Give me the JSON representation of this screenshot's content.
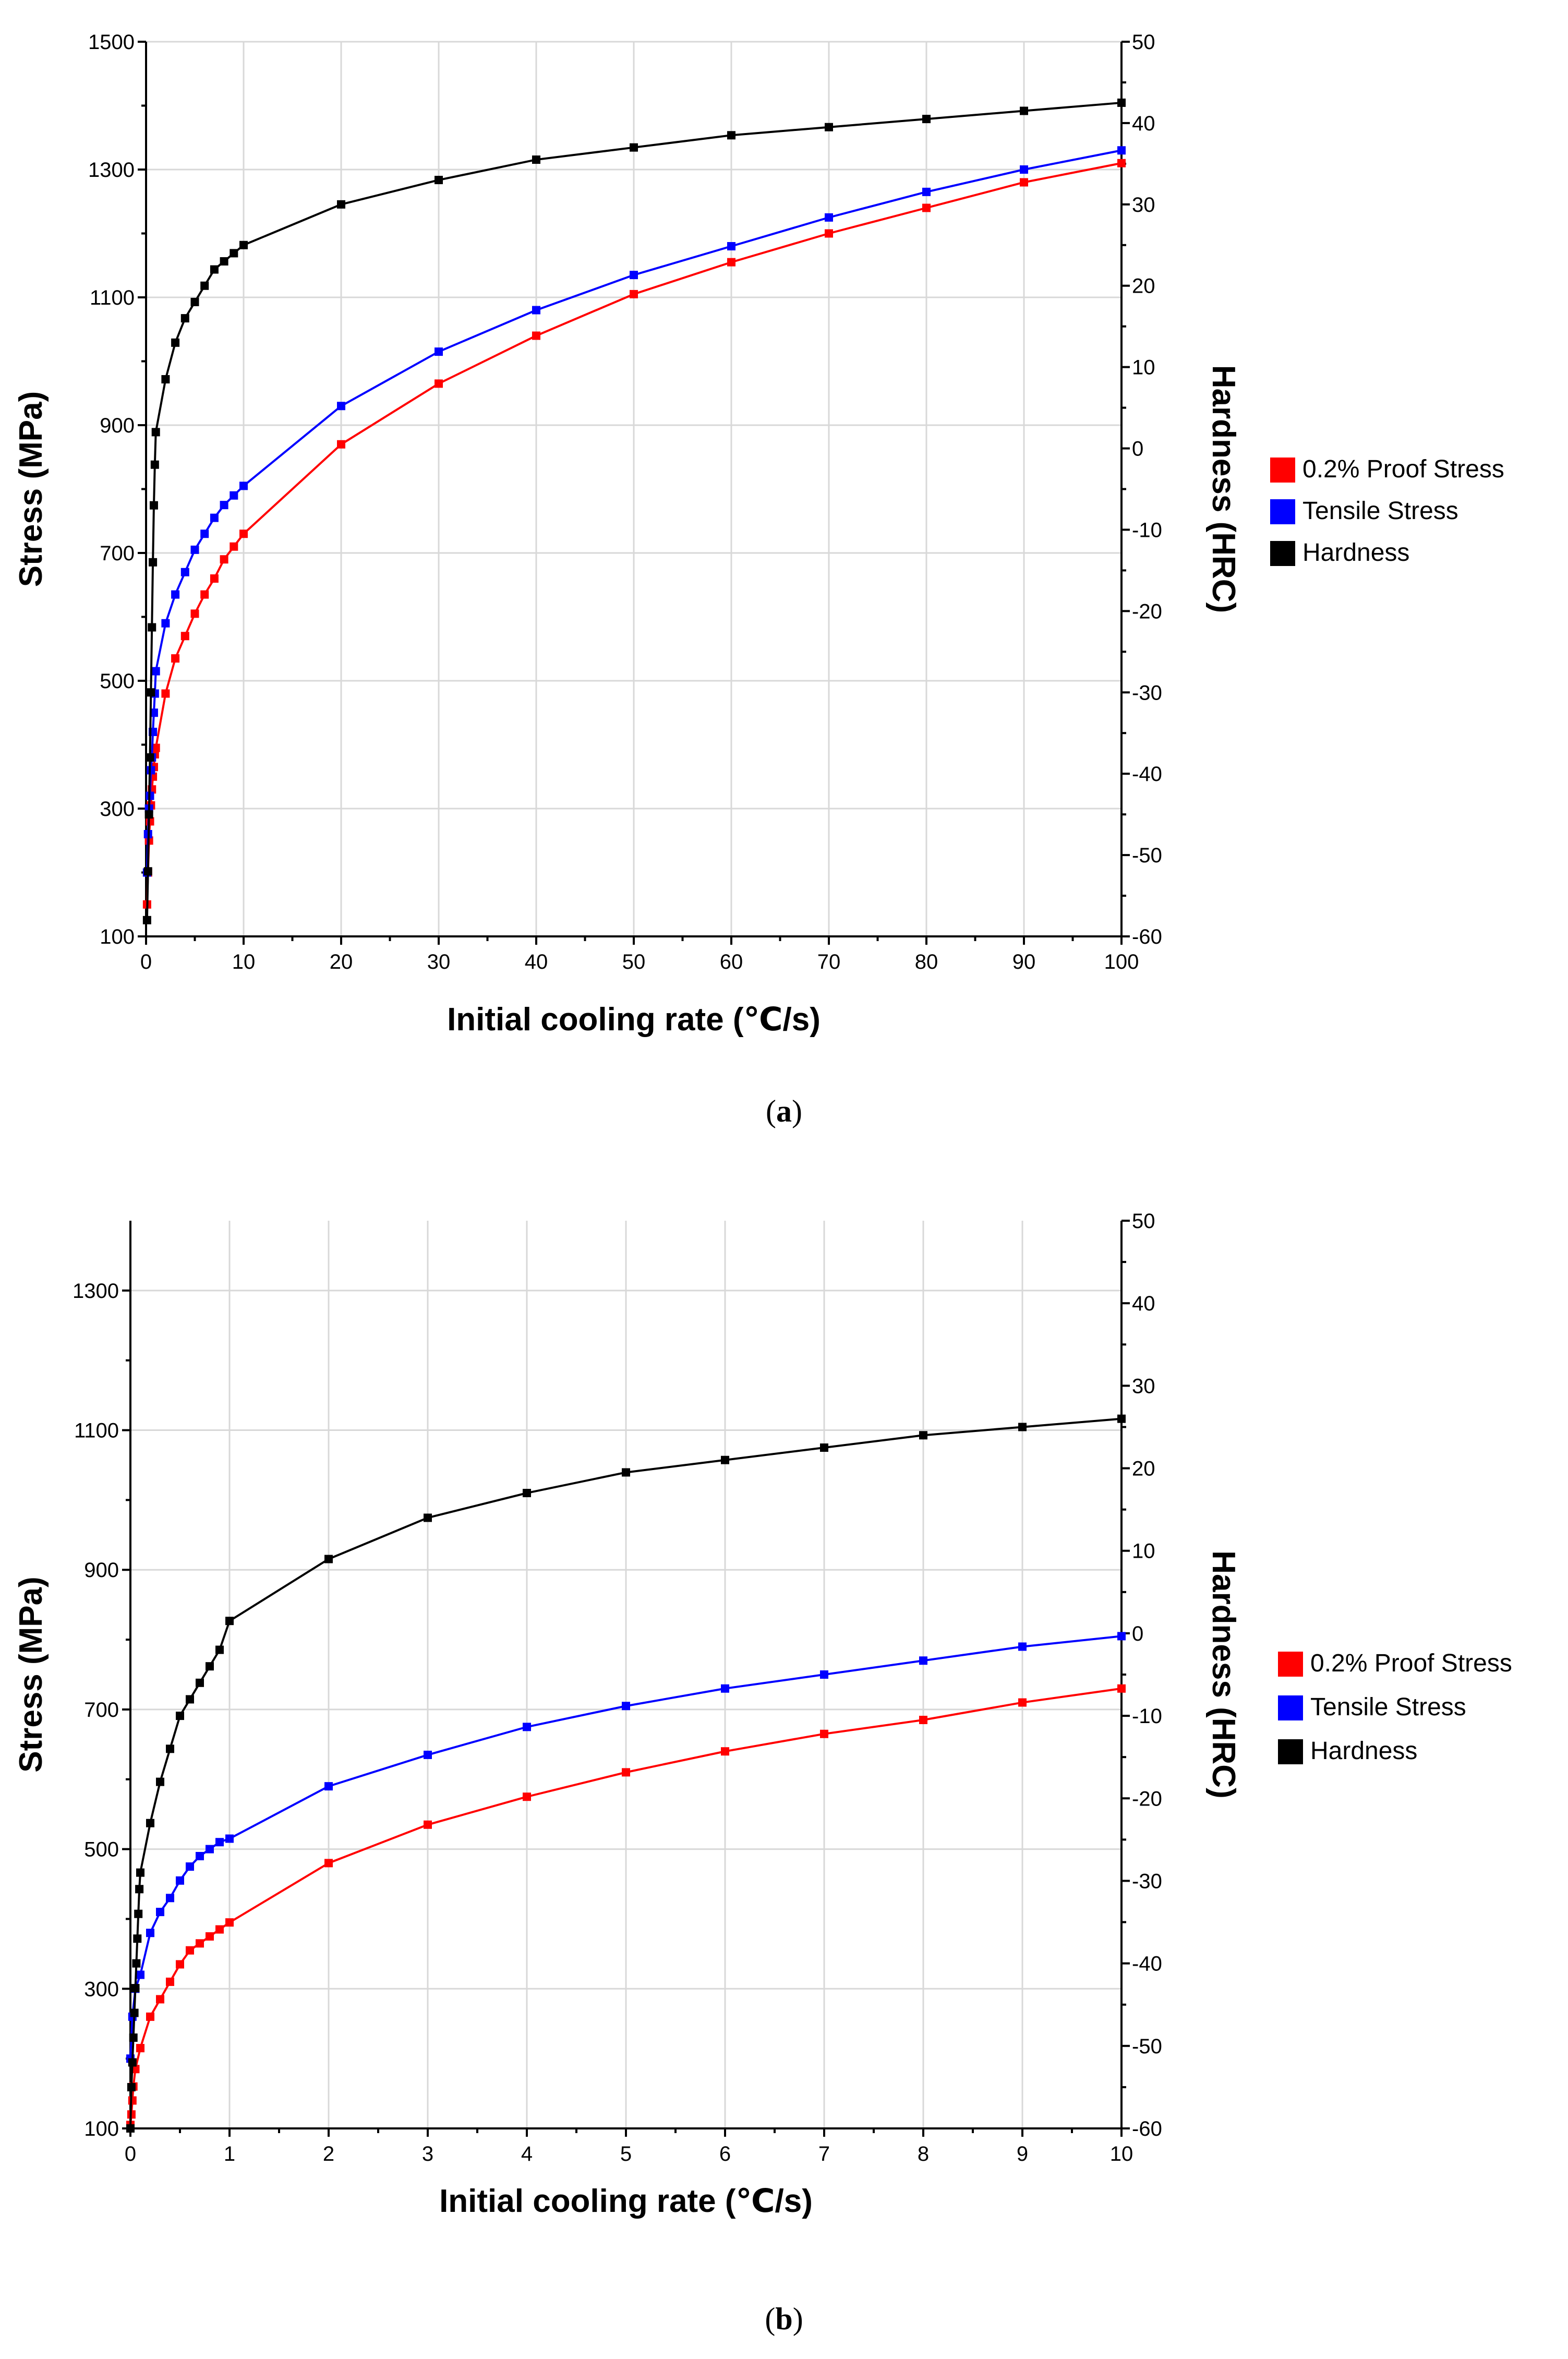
{
  "chart_data": [
    {
      "id": "a",
      "type": "line",
      "caption": "(a)",
      "xlabel": "Initial cooling rate (℃/s)",
      "ylabel_left": "Stress (MPa)",
      "ylabel_right": "Hardness (HRC)",
      "xlim": [
        0,
        100
      ],
      "ylim_left": [
        100,
        1500
      ],
      "ylim_right": [
        -60,
        50
      ],
      "x_ticks": [
        0,
        10,
        20,
        30,
        40,
        50,
        60,
        70,
        80,
        90,
        100
      ],
      "y_left_ticks": [
        100,
        300,
        500,
        700,
        900,
        1100,
        1300,
        1500
      ],
      "y_right_ticks": [
        -60,
        -50,
        -40,
        -30,
        -20,
        -10,
        0,
        10,
        20,
        30,
        40,
        50
      ],
      "grid": true,
      "legend_position": "right",
      "series": [
        {
          "name": "0.2% Proof Stress",
          "color": "#ff0000",
          "axis": "left",
          "x": [
            0.1,
            0.2,
            0.3,
            0.4,
            0.5,
            0.6,
            0.7,
            0.8,
            0.9,
            1,
            2,
            3,
            4,
            5,
            6,
            7,
            8,
            9,
            10,
            20,
            30,
            40,
            50,
            60,
            70,
            80,
            90,
            100
          ],
          "y": [
            150,
            200,
            250,
            280,
            305,
            330,
            350,
            365,
            385,
            395,
            480,
            535,
            570,
            605,
            635,
            660,
            690,
            710,
            730,
            870,
            965,
            1040,
            1105,
            1155,
            1200,
            1240,
            1280,
            1310
          ]
        },
        {
          "name": "Tensile Stress",
          "color": "#0000ff",
          "axis": "left",
          "x": [
            0.1,
            0.2,
            0.3,
            0.4,
            0.5,
            0.6,
            0.7,
            0.8,
            0.9,
            1,
            2,
            3,
            4,
            5,
            6,
            7,
            8,
            9,
            10,
            20,
            30,
            40,
            50,
            60,
            70,
            80,
            90,
            100
          ],
          "y": [
            200,
            260,
            300,
            320,
            360,
            380,
            420,
            450,
            480,
            515,
            590,
            635,
            670,
            705,
            730,
            755,
            775,
            790,
            805,
            930,
            1015,
            1080,
            1135,
            1180,
            1225,
            1265,
            1300,
            1330
          ]
        },
        {
          "name": "Hardness",
          "color": "#000000",
          "axis": "right",
          "x": [
            0.1,
            0.2,
            0.3,
            0.4,
            0.5,
            0.6,
            0.7,
            0.8,
            0.9,
            1,
            2,
            3,
            4,
            5,
            6,
            7,
            8,
            9,
            10,
            20,
            30,
            40,
            50,
            60,
            70,
            80,
            90,
            100
          ],
          "y": [
            -58,
            -52,
            -45,
            -38,
            -30,
            -22,
            -14,
            -7,
            -2,
            2,
            8.5,
            13,
            16,
            18,
            20,
            22,
            23,
            24,
            25,
            30,
            33,
            35.5,
            37,
            38.5,
            39.5,
            40.5,
            41.5,
            42.5
          ]
        }
      ]
    },
    {
      "id": "b",
      "type": "line",
      "caption": "(b)",
      "xlabel": "Initial cooling rate (℃/s)",
      "ylabel_left": "Stress (MPa)",
      "ylabel_right": "Hardness (HRC)",
      "xlim": [
        0,
        10
      ],
      "ylim_left": [
        100,
        1400
      ],
      "ylim_right": [
        -60,
        50
      ],
      "x_ticks": [
        0,
        1,
        2,
        3,
        4,
        5,
        6,
        7,
        8,
        9,
        10
      ],
      "y_left_ticks": [
        100,
        300,
        500,
        700,
        900,
        1100,
        1300
      ],
      "y_right_ticks": [
        -60,
        -50,
        -40,
        -30,
        -20,
        -10,
        0,
        10,
        20,
        30,
        40,
        50
      ],
      "grid": true,
      "legend_position": "right",
      "series": [
        {
          "name": "0.2% Proof Stress",
          "color": "#ff0000",
          "axis": "left",
          "x": [
            0,
            0.01,
            0.02,
            0.03,
            0.05,
            0.1,
            0.2,
            0.3,
            0.4,
            0.5,
            0.6,
            0.7,
            0.8,
            0.9,
            1,
            2,
            3,
            4,
            5,
            6,
            7,
            8,
            9,
            10
          ],
          "y": [
            105,
            120,
            140,
            160,
            185,
            215,
            260,
            285,
            310,
            335,
            355,
            365,
            375,
            385,
            395,
            480,
            535,
            575,
            610,
            640,
            665,
            685,
            710,
            730
          ]
        },
        {
          "name": "Tensile Stress",
          "color": "#0000ff",
          "axis": "left",
          "x": [
            0,
            0.02,
            0.05,
            0.1,
            0.2,
            0.3,
            0.4,
            0.5,
            0.6,
            0.7,
            0.8,
            0.9,
            1,
            2,
            3,
            4,
            5,
            6,
            7,
            8,
            9,
            10
          ],
          "y": [
            200,
            260,
            300,
            320,
            380,
            410,
            430,
            455,
            475,
            490,
            500,
            510,
            515,
            590,
            635,
            675,
            705,
            730,
            750,
            770,
            790,
            805
          ]
        },
        {
          "name": "Hardness",
          "color": "#000000",
          "axis": "right",
          "x": [
            0,
            0.01,
            0.02,
            0.03,
            0.04,
            0.05,
            0.06,
            0.07,
            0.08,
            0.09,
            0.1,
            0.2,
            0.3,
            0.4,
            0.5,
            0.6,
            0.7,
            0.8,
            0.9,
            1,
            2,
            3,
            4,
            5,
            6,
            7,
            8,
            9,
            10
          ],
          "y": [
            -60,
            -55,
            -52,
            -49,
            -46,
            -43,
            -40,
            -37,
            -34,
            -31,
            -29,
            -23,
            -18,
            -14,
            -10,
            -8,
            -6,
            -4,
            -2,
            1.5,
            9,
            14,
            17,
            19.5,
            21,
            22.5,
            24,
            25,
            26
          ]
        }
      ]
    }
  ]
}
